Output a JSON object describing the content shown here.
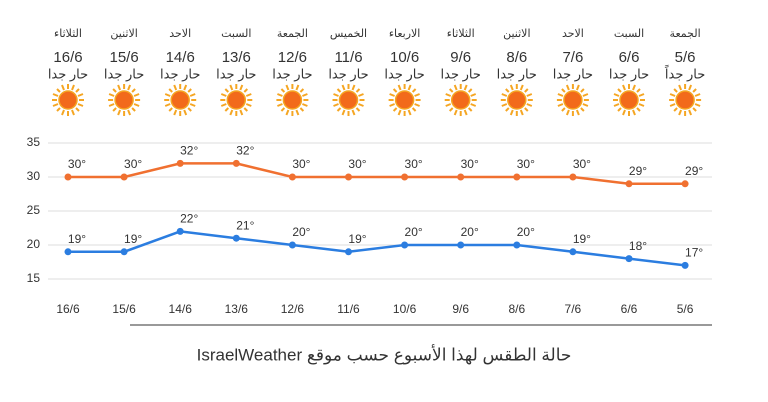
{
  "chart_data": {
    "type": "line",
    "days": [
      "الثلاثاء",
      "الاثنين",
      "الاحد",
      "السبت",
      "الجمعة",
      "الخميس",
      "الاربعاء",
      "الثلاثاء",
      "الاثنين",
      "الاحد",
      "السبت",
      "الجمعة"
    ],
    "dates": [
      "16/6",
      "15/6",
      "14/6",
      "13/6",
      "12/6",
      "11/6",
      "10/6",
      "9/6",
      "8/6",
      "7/6",
      "6/6",
      "5/6"
    ],
    "conditions": [
      "حار جدا",
      "حار جدا",
      "حار جدا",
      "حار جدا",
      "حار جدا",
      "حار جدا",
      "حار جدا",
      "حار جدا",
      "حار جدا",
      "حار جدا",
      "حار جدا",
      "حار جداً"
    ],
    "categories": [
      "16/6",
      "15/6",
      "14/6",
      "13/6",
      "12/6",
      "11/6",
      "10/6",
      "9/6",
      "8/6",
      "7/6",
      "6/6",
      "5/6"
    ],
    "series": [
      {
        "color": "#f07030",
        "values": [
          30,
          30,
          32,
          32,
          30,
          30,
          30,
          30,
          30,
          30,
          29,
          29
        ],
        "value_labels": [
          "30°",
          "30°",
          "32°",
          "32°",
          "30°",
          "30°",
          "30°",
          "30°",
          "30°",
          "30°",
          "29°",
          "29°"
        ]
      },
      {
        "color": "#2b7de0",
        "values": [
          19,
          19,
          22,
          21,
          20,
          19,
          20,
          20,
          20,
          19,
          18,
          17
        ],
        "value_labels": [
          "19°",
          "19°",
          "22°",
          "21°",
          "20°",
          "19°",
          "20°",
          "20°",
          "20°",
          "19°",
          "18°",
          "17°"
        ]
      }
    ],
    "ylim": [
      15,
      35
    ],
    "yticks": [
      15,
      20,
      25,
      30,
      35
    ],
    "grid": true,
    "caption": "حالة الطقس لهذا الأسبوع حسب موقع IsraelWeather"
  }
}
